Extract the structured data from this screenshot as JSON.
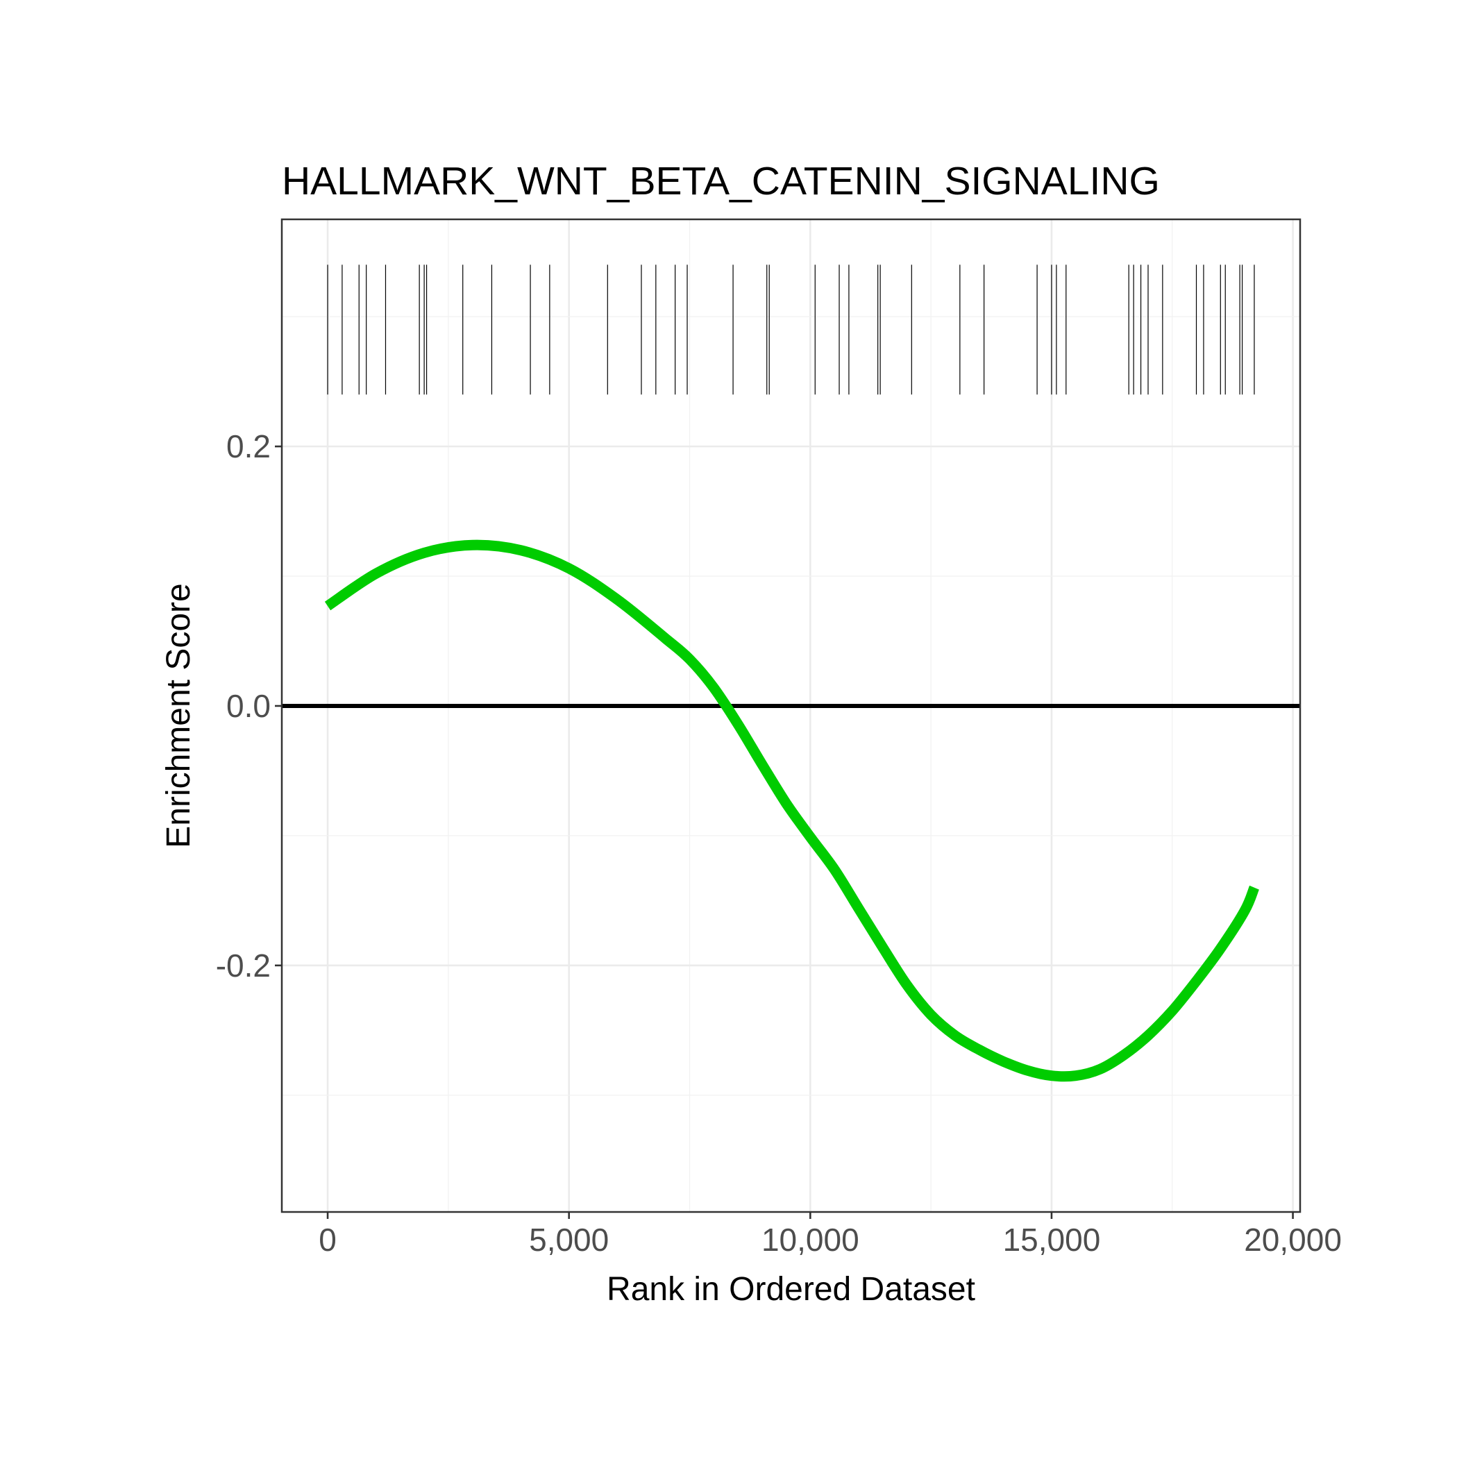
{
  "chart_data": {
    "type": "line",
    "title": "HALLMARK_WNT_BETA_CATENIN_SIGNALING",
    "xlabel": "Rank in Ordered Dataset",
    "ylabel": "Enrichment Score",
    "xlim": [
      -950,
      20150
    ],
    "ylim": [
      -0.39,
      0.375
    ],
    "x_ticks": [
      0,
      5000,
      10000,
      15000,
      20000
    ],
    "x_tick_labels": [
      "0",
      "5,000",
      "10,000",
      "15,000",
      "20,000"
    ],
    "y_ticks": [
      -0.2,
      0.0,
      0.2
    ],
    "y_tick_labels": [
      "-0.2",
      "0.0",
      "0.2"
    ],
    "grid": true,
    "legend": "none",
    "reference_line": {
      "y": 0.0,
      "color": "#000000"
    },
    "series": [
      {
        "color": "#00cc00",
        "points": [
          [
            0,
            0.077
          ],
          [
            1000,
            0.102
          ],
          [
            2000,
            0.118
          ],
          [
            3000,
            0.124
          ],
          [
            4000,
            0.12
          ],
          [
            5000,
            0.106
          ],
          [
            6000,
            0.082
          ],
          [
            7000,
            0.052
          ],
          [
            7500,
            0.036
          ],
          [
            8000,
            0.014
          ],
          [
            8500,
            -0.014
          ],
          [
            9000,
            -0.045
          ],
          [
            9500,
            -0.075
          ],
          [
            10000,
            -0.101
          ],
          [
            10500,
            -0.126
          ],
          [
            11000,
            -0.156
          ],
          [
            11500,
            -0.186
          ],
          [
            12000,
            -0.215
          ],
          [
            12500,
            -0.238
          ],
          [
            13000,
            -0.254
          ],
          [
            13500,
            -0.265
          ],
          [
            14000,
            -0.274
          ],
          [
            14500,
            -0.281
          ],
          [
            15000,
            -0.285
          ],
          [
            15500,
            -0.285
          ],
          [
            16000,
            -0.28
          ],
          [
            16500,
            -0.269
          ],
          [
            17000,
            -0.254
          ],
          [
            17500,
            -0.235
          ],
          [
            18000,
            -0.212
          ],
          [
            18500,
            -0.187
          ],
          [
            19000,
            -0.158
          ],
          [
            19200,
            -0.14
          ]
        ]
      }
    ],
    "gene_hits": [
      0,
      300,
      650,
      800,
      1200,
      1900,
      2000,
      2050,
      2800,
      3400,
      4200,
      4600,
      5800,
      6500,
      6800,
      7200,
      7450,
      8400,
      9100,
      9150,
      10100,
      10600,
      10800,
      11400,
      11450,
      12100,
      13100,
      13600,
      14700,
      15000,
      15100,
      15300,
      16600,
      16700,
      16850,
      17000,
      17300,
      18000,
      18150,
      18500,
      18600,
      18900,
      18950,
      19200
    ],
    "hit_band": {
      "y_top": 0.34,
      "y_bottom": 0.24,
      "color": "#000000"
    }
  }
}
